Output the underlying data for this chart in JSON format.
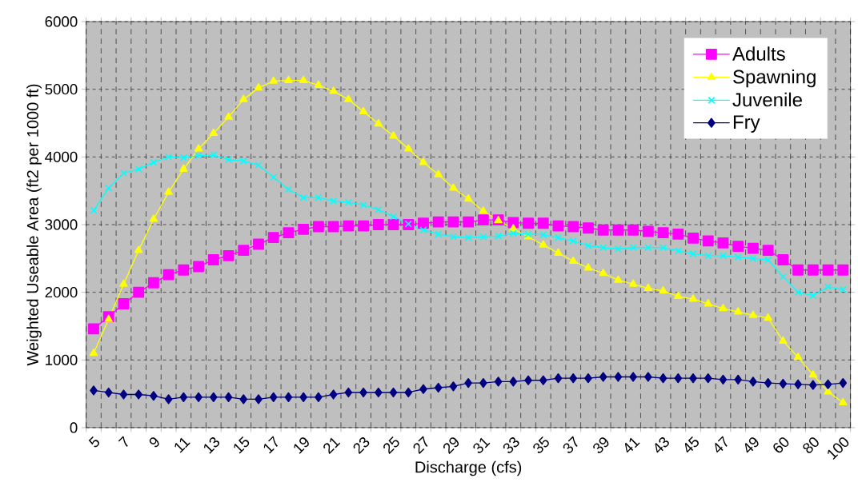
{
  "chart_data": {
    "type": "line",
    "xlabel": "Discharge (cfs)",
    "ylabel": "Weighted Useable Area (ft2 per 1000 ft)",
    "categories": [
      "5",
      null,
      "7",
      null,
      "9",
      null,
      "11",
      null,
      "13",
      null,
      "15",
      null,
      "17",
      null,
      "19",
      null,
      "21",
      null,
      "23",
      null,
      "25",
      null,
      "27",
      null,
      "29",
      null,
      "31",
      null,
      "33",
      null,
      "35",
      null,
      "37",
      null,
      "39",
      null,
      "41",
      null,
      "43",
      null,
      "45",
      null,
      "47",
      null,
      "49",
      null,
      "60",
      null,
      "80",
      null,
      "100"
    ],
    "ylim": [
      0,
      6000
    ],
    "yticks": [
      0,
      1000,
      2000,
      3000,
      4000,
      5000,
      6000
    ],
    "grid": true,
    "legend": "top right",
    "series": [
      {
        "name": "Adults",
        "color": "#ff00ff",
        "marker": "square",
        "values": [
          1460,
          1640,
          1830,
          2000,
          2140,
          2260,
          2330,
          2380,
          2480,
          2540,
          2620,
          2710,
          2810,
          2880,
          2930,
          2970,
          2970,
          2980,
          2980,
          3000,
          3000,
          3000,
          3020,
          3040,
          3040,
          3040,
          3070,
          3070,
          3030,
          3020,
          3020,
          2980,
          2970,
          2950,
          2920,
          2920,
          2920,
          2900,
          2880,
          2860,
          2800,
          2760,
          2730,
          2680,
          2650,
          2620,
          2480,
          2330,
          2330,
          2330,
          2330
        ]
      },
      {
        "name": "Spawning",
        "color": "#ffff00",
        "marker": "triangle",
        "values": [
          1100,
          1600,
          2120,
          2620,
          3080,
          3480,
          3820,
          4120,
          4350,
          4590,
          4850,
          5020,
          5120,
          5130,
          5130,
          5060,
          4970,
          4850,
          4670,
          4490,
          4310,
          4120,
          3920,
          3740,
          3540,
          3380,
          3200,
          3060,
          2940,
          2820,
          2700,
          2580,
          2460,
          2360,
          2280,
          2180,
          2120,
          2060,
          2020,
          1940,
          1900,
          1830,
          1760,
          1710,
          1660,
          1620,
          1280,
          1040,
          780,
          530,
          370
        ]
      },
      {
        "name": "Juvenile",
        "color": "#00ffff",
        "marker": "cross",
        "values": [
          3210,
          3540,
          3760,
          3820,
          3920,
          4000,
          3990,
          4020,
          4030,
          3960,
          3940,
          3880,
          3700,
          3520,
          3400,
          3400,
          3350,
          3330,
          3290,
          3220,
          3120,
          3010,
          2920,
          2860,
          2820,
          2810,
          2820,
          2830,
          2870,
          2860,
          2850,
          2810,
          2760,
          2690,
          2660,
          2640,
          2660,
          2660,
          2660,
          2610,
          2570,
          2540,
          2540,
          2520,
          2500,
          2480,
          2230,
          2000,
          1950,
          2080,
          2040
        ]
      },
      {
        "name": "Fry",
        "color": "#000080",
        "marker": "diamond",
        "values": [
          550,
          520,
          490,
          490,
          470,
          420,
          450,
          450,
          450,
          450,
          420,
          420,
          450,
          450,
          450,
          450,
          490,
          520,
          520,
          520,
          520,
          520,
          570,
          590,
          610,
          660,
          660,
          680,
          680,
          700,
          700,
          730,
          730,
          730,
          750,
          750,
          750,
          750,
          730,
          730,
          730,
          730,
          710,
          710,
          680,
          660,
          650,
          640,
          630,
          640,
          660
        ]
      }
    ]
  }
}
